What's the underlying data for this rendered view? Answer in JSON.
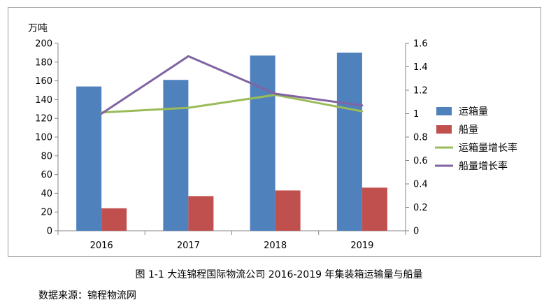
{
  "chart_data": {
    "type": "bar",
    "categories": [
      "2016",
      "2017",
      "2018",
      "2019"
    ],
    "y_left_unit": "万吨",
    "ylim_left": [
      0,
      200
    ],
    "y_left_ticks": [
      "0",
      "20",
      "40",
      "60",
      "80",
      "100",
      "120",
      "140",
      "160",
      "180",
      "200"
    ],
    "ylim_right": [
      0,
      1.6
    ],
    "y_right_ticks": [
      "0",
      "0.2",
      "0.4",
      "0.6",
      "0.8",
      "1",
      "1.2",
      "1.4",
      "1.6"
    ],
    "series": [
      {
        "name": "运箱量",
        "type": "bar",
        "axis": "left",
        "color": "#4f81bd",
        "values": [
          154,
          161,
          187,
          190
        ]
      },
      {
        "name": "船量",
        "type": "bar",
        "axis": "left",
        "color": "#c0504d",
        "values": [
          24,
          37,
          43,
          46
        ]
      },
      {
        "name": "运箱量增长率",
        "type": "line",
        "axis": "right",
        "color": "#9bbb59",
        "values": [
          1.01,
          1.05,
          1.16,
          1.02
        ]
      },
      {
        "name": "船量增长率",
        "type": "line",
        "axis": "right",
        "color": "#8064a2",
        "values": [
          1.0,
          1.49,
          1.17,
          1.07
        ]
      }
    ],
    "legend_position": "right",
    "grid": false
  },
  "caption": "图 1-1 大连锦程国际物流公司 2016-2019 年集装箱运输量与船量",
  "source": "数据来源：锦程物流网"
}
